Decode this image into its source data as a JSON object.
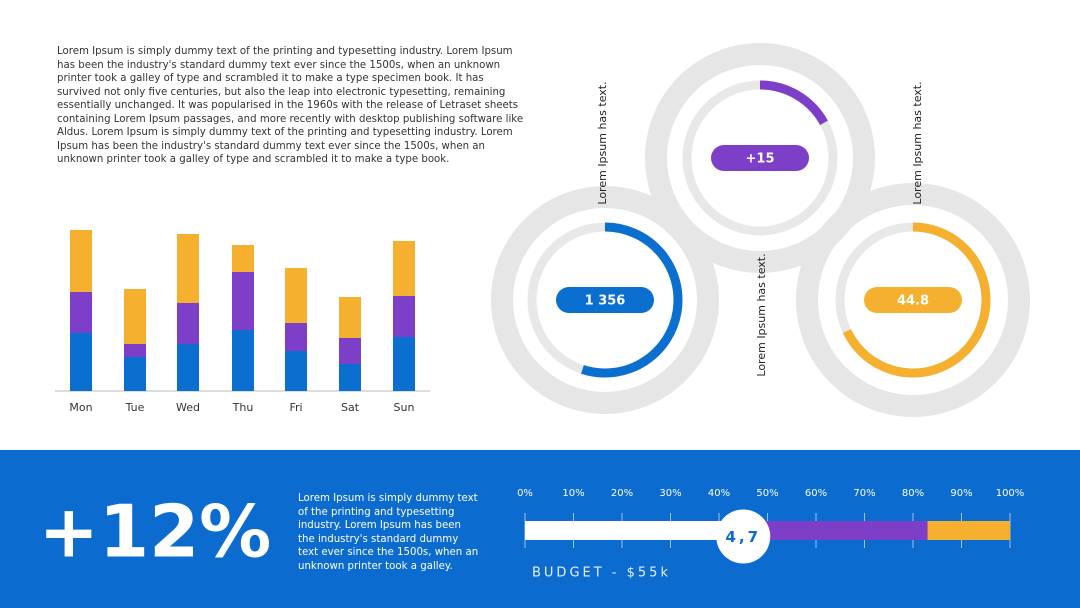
{
  "intro_text": "Lorem Ipsum is simply dummy text of the printing and typesetting industry. Lorem Ipsum has been the industry's standard dummy text ever since the 1500s, when an unknown printer took a galley of type and scrambled it to make a type specimen book. It has survived not only five centuries, but also the leap into electronic typesetting, remaining essentially unchanged. It was popularised in the 1960s with the release of Letraset sheets containing Lorem Ipsum passages, and more recently with desktop publishing software like Aldus. Lorem Ipsum is simply dummy text of the printing and typesetting industry. Lorem Ipsum has been the industry's standard dummy text ever since the 1500s, when an unknown printer took a galley of type and scrambled it to make a type book.",
  "highlight": {
    "big_text": "+12%",
    "text": "Lorem Ipsum is simply dummy text of the printing and typesetting industry. Lorem Ipsum has been the industry's standard dummy text ever since the 1500s, when an unknown printer took a galley."
  },
  "chart_data": [
    {
      "type": "bar",
      "stacked": true,
      "categories": [
        "Mon",
        "Tue",
        "Wed",
        "Thu",
        "Fri",
        "Sat",
        "Sun"
      ],
      "series": [
        {
          "color": "#0a6fcf",
          "values": [
            58,
            34,
            47,
            61,
            40,
            27,
            54
          ]
        },
        {
          "color": "#7d3fc8",
          "values": [
            41,
            13,
            41,
            58,
            28,
            26,
            41
          ]
        },
        {
          "color": "#f5b030",
          "values": [
            62,
            55,
            69,
            27,
            55,
            41,
            55
          ]
        }
      ],
      "ylim": [
        0,
        170
      ]
    },
    {
      "type": "gauge",
      "ylim": [
        0,
        100
      ],
      "gauges": [
        {
          "label": "1 356",
          "value": 55,
          "color": "#0a6fcf"
        },
        {
          "label": "+15",
          "value": 17,
          "color": "#7d3fc8"
        },
        {
          "label": "44.8",
          "value": 68,
          "color": "#f5b030"
        }
      ],
      "captions": [
        "Lorem Ipsum has text.",
        "Lorem Ipsum has text.",
        "Lorem Ipsum has text."
      ]
    },
    {
      "type": "progress",
      "xlim": [
        0,
        100
      ],
      "xticks": [
        {
          "value": 0,
          "label": "0%"
        },
        {
          "value": 10,
          "label": "10%"
        },
        {
          "value": 20,
          "label": "20%"
        },
        {
          "value": 30,
          "label": "30%"
        },
        {
          "value": 40,
          "label": "40%"
        },
        {
          "value": 50,
          "label": "50%"
        },
        {
          "value": 60,
          "label": "60%"
        },
        {
          "value": 70,
          "label": "70%"
        },
        {
          "value": 80,
          "label": "80%"
        },
        {
          "value": 90,
          "label": "90%"
        },
        {
          "value": 100,
          "label": "100%"
        }
      ],
      "values": [
        45,
        38,
        17
      ],
      "colors": [
        "#ffffff",
        "#7d3fc8",
        "#f5b030"
      ],
      "marker_label": "4,7",
      "caption": "BUDGET - $55k"
    }
  ]
}
